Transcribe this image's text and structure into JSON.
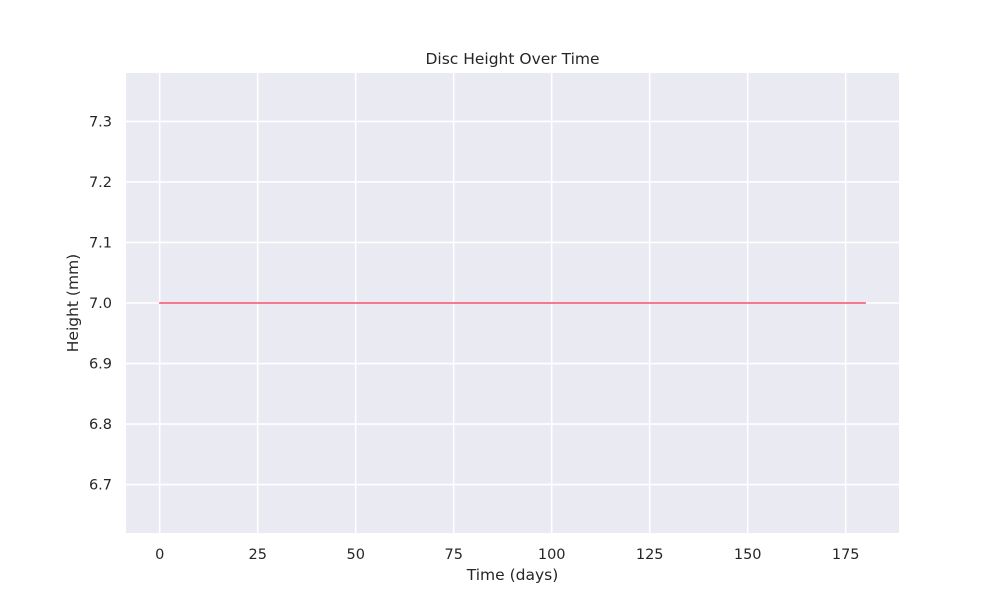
{
  "chart_data": {
    "type": "line",
    "title": "Disc Height Over Time",
    "xlabel": "Time (days)",
    "ylabel": "Height (mm)",
    "xlim": [
      -8.6,
      188.6
    ],
    "ylim": [
      6.62,
      7.38
    ],
    "xticks": [
      0,
      25,
      50,
      75,
      100,
      125,
      150,
      175
    ],
    "xtick_labels": [
      "0",
      "25",
      "50",
      "75",
      "100",
      "125",
      "150",
      "175"
    ],
    "yticks": [
      6.7,
      6.8,
      6.9,
      7.0,
      7.1,
      7.2,
      7.3
    ],
    "ytick_labels": [
      "6.7",
      "6.8",
      "6.9",
      "7.0",
      "7.1",
      "7.2",
      "7.3"
    ],
    "grid": true,
    "legend": "none",
    "background_color": "#eaeaf2",
    "grid_color": "#ffffff",
    "series": [
      {
        "color": "#f0506e",
        "x": [
          0,
          180
        ],
        "y": [
          7.0,
          7.0
        ]
      }
    ]
  }
}
